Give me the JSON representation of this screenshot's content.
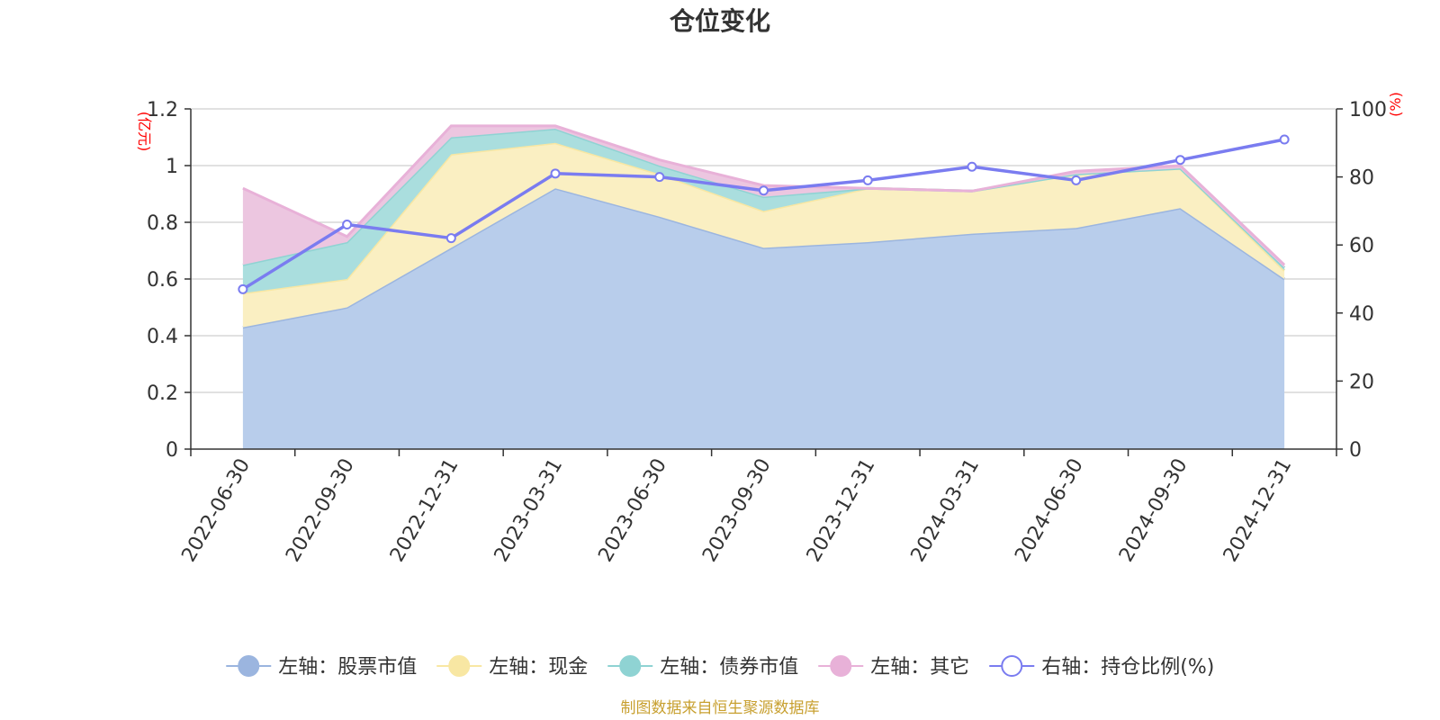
{
  "chart_data": {
    "type": "area",
    "title": "仓位变化",
    "categories": [
      "2022-06-30",
      "2022-09-30",
      "2022-12-31",
      "2023-03-31",
      "2023-06-30",
      "2023-09-30",
      "2023-12-31",
      "2024-03-31",
      "2024-06-30",
      "2024-09-30",
      "2024-12-31"
    ],
    "left_axis": {
      "unit": "(亿元)",
      "ylim": [
        0,
        1.2
      ],
      "ticks": [
        "0",
        "0.2",
        "0.4",
        "0.6",
        "0.8",
        "1",
        "1.2"
      ],
      "tick_values": [
        0,
        0.2,
        0.4,
        0.6,
        0.8,
        1.0,
        1.2
      ]
    },
    "right_axis": {
      "unit": "(%)",
      "ylim": [
        0,
        100
      ],
      "ticks": [
        "0",
        "20",
        "40",
        "60",
        "80",
        "100"
      ],
      "tick_values": [
        0,
        20,
        40,
        60,
        80,
        100
      ]
    },
    "stacked_series": [
      {
        "name": "左轴：股票市值",
        "color": "#9bb5df",
        "fill": "#b8cdeb",
        "values": [
          0.43,
          0.5,
          0.71,
          0.92,
          0.82,
          0.71,
          0.73,
          0.76,
          0.78,
          0.85,
          0.6
        ]
      },
      {
        "name": "左轴：现金",
        "color": "#f8e7a3",
        "fill": "#faefc2",
        "values": [
          0.12,
          0.1,
          0.33,
          0.16,
          0.15,
          0.13,
          0.19,
          0.15,
          0.19,
          0.14,
          0.03
        ]
      },
      {
        "name": "左轴：债券市值",
        "color": "#8fd3d3",
        "fill": "#aadede",
        "values": [
          0.1,
          0.13,
          0.06,
          0.05,
          0.03,
          0.05,
          0.0,
          0.0,
          0.0,
          0.0,
          0.01
        ]
      },
      {
        "name": "左轴：其它",
        "color": "#e8b1d8",
        "fill": "#ecc6e0",
        "values": [
          0.27,
          0.02,
          0.04,
          0.01,
          0.02,
          0.04,
          0.0,
          0.0,
          0.01,
          0.01,
          0.01
        ]
      }
    ],
    "line_series": {
      "name": "右轴：持仓比例(%)",
      "color": "#7a7cf0",
      "values": [
        47,
        66,
        62,
        81,
        80,
        76,
        79,
        83,
        79,
        85,
        91
      ]
    },
    "legend_position": "bottom",
    "grid": true
  },
  "footer": {
    "source": "制图数据来自恒生聚源数据库",
    "source_color": "#c8a030"
  }
}
